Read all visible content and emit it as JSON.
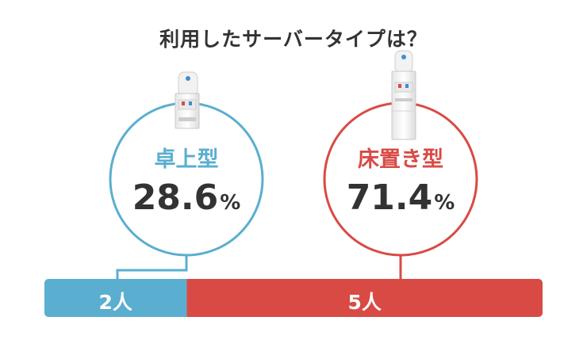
{
  "title": "利用したサーバータイプは？",
  "colors": {
    "tabletop": "#5aaed0",
    "floor": "#d94a45",
    "text": "#333333"
  },
  "chart_data": {
    "type": "bar",
    "orientation": "horizontal-stacked",
    "categories": [
      "卓上型",
      "床置き型"
    ],
    "values": [
      2,
      5
    ],
    "unit_label": "人",
    "percentages": [
      28.6,
      71.4
    ],
    "percent_unit": "%",
    "labels": {
      "tabletop_name": "卓上型",
      "tabletop_percent": "28.6",
      "tabletop_count": "2人",
      "floor_name": "床置き型",
      "floor_percent": "71.4",
      "floor_count": "5人"
    }
  }
}
